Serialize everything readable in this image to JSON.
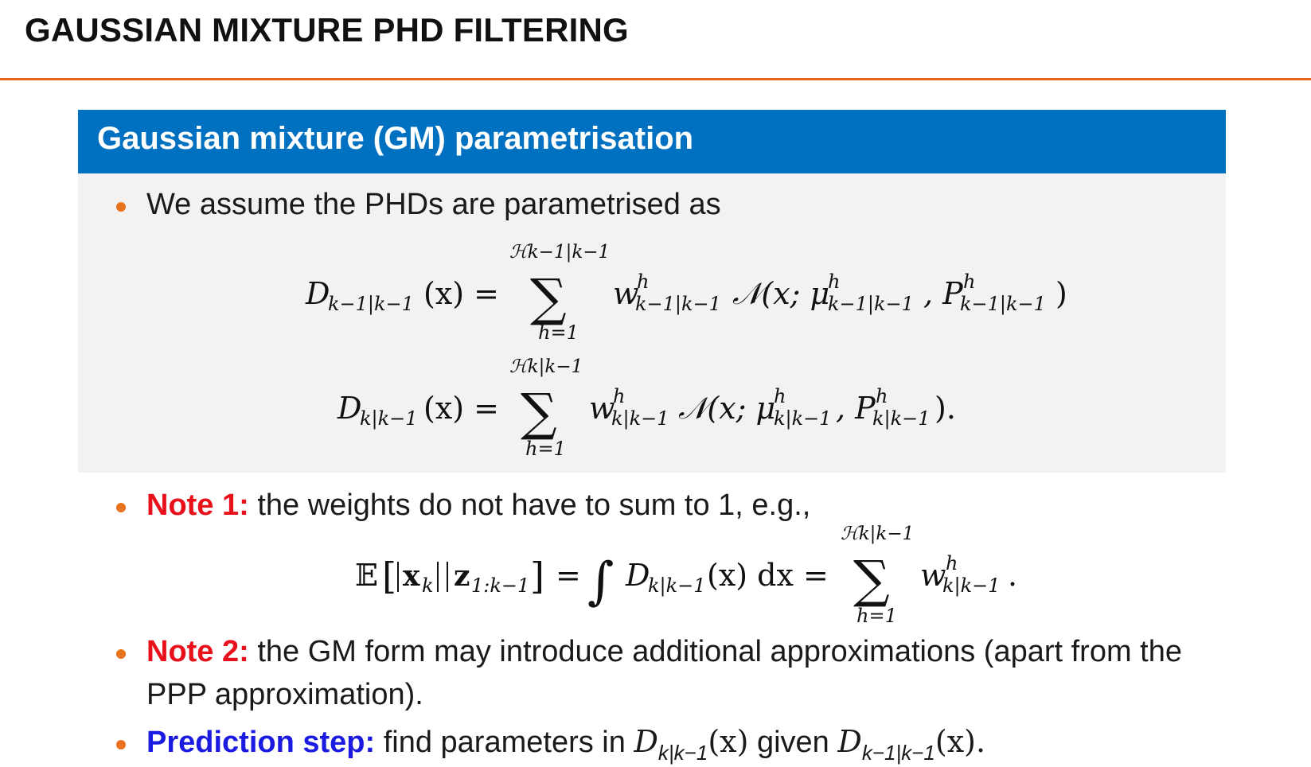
{
  "slide": {
    "title": "GAUSSIAN MIXTURE PHD FILTERING",
    "accent_color": "#e8641c",
    "block_header_color": "#0070c0"
  },
  "block": {
    "title": "Gaussian mixture (GM) parametrisation",
    "bullet_1": "We assume the PHDs are parametrised as"
  },
  "equations": {
    "eq1": {
      "lhs_D": "D",
      "lhs_sub": "k−1|k−1",
      "lhs_arg": "(x) =",
      "sum_upper": "ℋk−1|k−1",
      "sum_lower": "h=1",
      "w": "w",
      "w_sup": "h",
      "w_sub": "k−1|k−1",
      "normal": "𝒩(x; μ",
      "mu_sup": "h",
      "mu_sub": "k−1|k−1",
      "comma_P": ", P",
      "P_sup": "h",
      "P_sub": "k−1|k−1",
      "close": ")"
    },
    "eq2": {
      "lhs_D": "D",
      "lhs_sub": "k|k−1",
      "lhs_arg": "(x) =",
      "sum_upper": "ℋk|k−1",
      "sum_lower": "h=1",
      "w": "w",
      "w_sup": "h",
      "w_sub": "k|k−1",
      "normal": "𝒩(x; μ",
      "mu_sup": "h",
      "mu_sub": "k|k−1",
      "comma_P": ", P",
      "P_sup": "h",
      "P_sub": "k|k−1",
      "close": ")."
    },
    "eq3": {
      "E": "𝔼",
      "x": "x",
      "x_sub": "k",
      "z": "z",
      "z_sub": "1:k−1",
      "eq1": "=",
      "integral": "∫",
      "D": "D",
      "D_sub": "k|k−1",
      "D_arg": "(x) dx =",
      "sum_upper": "ℋk|k−1",
      "sum_lower": "h=1",
      "w": "w",
      "w_sup": "h",
      "w_sub": "k|k−1",
      "end": "."
    }
  },
  "notes": {
    "note1_label": "Note 1:",
    "note1_text": "the weights do not have to sum to 1, e.g.,",
    "note2_label": "Note 2:",
    "note2_text_line1": "the GM form may introduce additional approximations (apart from the",
    "note2_text_line2": "PPP approximation).",
    "prediction_label": "Prediction step:",
    "prediction_text": "find parameters in",
    "prediction_D1": "D",
    "prediction_D1_sub": "k|k−1",
    "prediction_D1_arg": "(x)",
    "prediction_given": "given",
    "prediction_D2": "D",
    "prediction_D2_sub": "k−1|k−1",
    "prediction_D2_arg": "(x).",
    "note_color": "#e8101a",
    "prediction_color": "#1a1ae0"
  }
}
